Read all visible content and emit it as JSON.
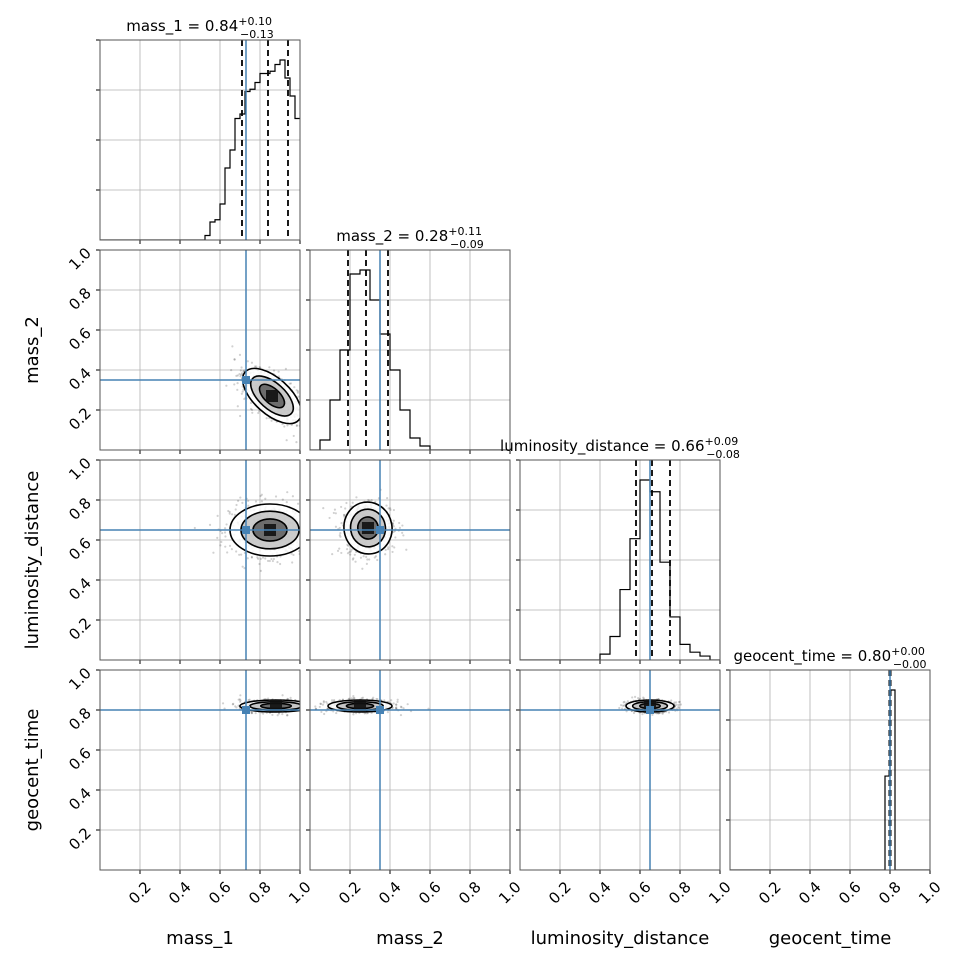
{
  "chart_data": {
    "type": "corner",
    "parameters": [
      "mass_1",
      "mass_2",
      "luminosity_distance",
      "geocent_time"
    ],
    "axis_labels": [
      "mass_1",
      "mass_2",
      "luminosity_distance",
      "geocent_time"
    ],
    "xlim": [
      0,
      1
    ],
    "ylim": [
      0,
      1
    ],
    "x_ticks": [
      "0.2",
      "0.4",
      "0.6",
      "0.8",
      "1.0"
    ],
    "y_ticks": [
      "0.2",
      "0.4",
      "0.6",
      "0.8",
      "1.0"
    ],
    "grid": true,
    "truths": [
      0.73,
      0.35,
      0.65,
      0.8
    ],
    "truth_color": "#4682b4",
    "title_parts": [
      {
        "prefix": "mass_1 = 0.84",
        "plus": "+0.10",
        "minus": "−0.13"
      },
      {
        "prefix": "mass_2 = 0.28",
        "plus": "+0.11",
        "minus": "−0.09"
      },
      {
        "prefix": "luminosity_distance = 0.66",
        "plus": "+0.09",
        "minus": "−0.08"
      },
      {
        "prefix": "geocent_time = 0.80",
        "plus": "+0.00",
        "minus": "−0.00"
      }
    ],
    "marginals": [
      {
        "parameter": "mass_1",
        "bin_edges": [
          0.525,
          0.55,
          0.575,
          0.6,
          0.625,
          0.65,
          0.675,
          0.7,
          0.725,
          0.75,
          0.775,
          0.8,
          0.825,
          0.85,
          0.875,
          0.9,
          0.925,
          0.95,
          0.975,
          1.0
        ],
        "counts": [
          2,
          8,
          9,
          16,
          32,
          40,
          54,
          56,
          66,
          67,
          70,
          74,
          74,
          75,
          78,
          80,
          72,
          64,
          54
        ],
        "quantiles": [
          0.71,
          0.84,
          0.94
        ]
      },
      {
        "parameter": "mass_2",
        "bin_edges": [
          0.05,
          0.1,
          0.15,
          0.2,
          0.25,
          0.3,
          0.35,
          0.4,
          0.45,
          0.5,
          0.55,
          0.6
        ],
        "counts": [
          5,
          25,
          50,
          88,
          90,
          75,
          58,
          40,
          20,
          6,
          2
        ],
        "quantiles": [
          0.19,
          0.28,
          0.39
        ]
      },
      {
        "parameter": "luminosity_distance",
        "bin_edges": [
          0.4,
          0.45,
          0.5,
          0.55,
          0.6,
          0.65,
          0.7,
          0.75,
          0.8,
          0.85,
          0.9,
          0.95
        ],
        "counts": [
          3,
          12,
          36,
          62,
          92,
          86,
          50,
          22,
          8,
          4,
          2
        ],
        "quantiles": [
          0.58,
          0.66,
          0.75
        ]
      },
      {
        "parameter": "geocent_time",
        "bin_edges": [
          0.75,
          0.775,
          0.8,
          0.825,
          0.85
        ],
        "counts": [
          0,
          48,
          92,
          0
        ],
        "quantiles": [
          0.797,
          0.8,
          0.803
        ]
      }
    ],
    "joint": [
      {
        "x": "mass_1",
        "y": "mass_2",
        "center": [
          0.86,
          0.27
        ],
        "spread": [
          0.09,
          0.045
        ],
        "angle_deg": -42,
        "truth": [
          0.73,
          0.35
        ]
      },
      {
        "x": "mass_1",
        "y": "luminosity_distance",
        "center": [
          0.85,
          0.65
        ],
        "spread": [
          0.1,
          0.065
        ],
        "angle_deg": 0,
        "truth": [
          0.73,
          0.65
        ]
      },
      {
        "x": "mass_2",
        "y": "luminosity_distance",
        "center": [
          0.29,
          0.66
        ],
        "spread": [
          0.06,
          0.065
        ],
        "angle_deg": 10,
        "truth": [
          0.35,
          0.65
        ]
      },
      {
        "x": "mass_1",
        "y": "geocent_time",
        "center": [
          0.88,
          0.82
        ],
        "spread": [
          0.09,
          0.015
        ],
        "angle_deg": 0,
        "truth": [
          0.73,
          0.8
        ]
      },
      {
        "x": "mass_2",
        "y": "geocent_time",
        "center": [
          0.25,
          0.82
        ],
        "spread": [
          0.08,
          0.015
        ],
        "angle_deg": 0,
        "truth": [
          0.35,
          0.8
        ]
      },
      {
        "x": "luminosity_distance",
        "y": "geocent_time",
        "center": [
          0.65,
          0.82
        ],
        "spread": [
          0.06,
          0.015
        ],
        "angle_deg": 0,
        "truth": [
          0.65,
          0.8
        ]
      }
    ]
  }
}
